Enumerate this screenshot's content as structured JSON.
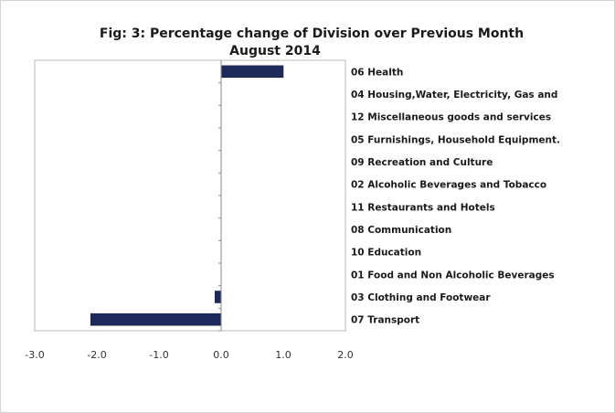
{
  "chart_data": {
    "type": "bar",
    "orientation": "horizontal",
    "title": "Fig: 3: Percentage change of Division over Previous Month",
    "subtitle": "August 2014",
    "categories": [
      "06 Health",
      "04 Housing,Water, Electricity, Gas and",
      "12 Miscellaneous goods and services",
      "05 Furnishings, Household Equipment.",
      "09 Recreation and Culture",
      "02 Alcoholic Beverages and Tobacco",
      "11 Restaurants and Hotels",
      "08 Communication",
      "10 Education",
      "01 Food and Non Alcoholic Beverages",
      "03 Clothing and Footwear",
      "07 Transport"
    ],
    "values": [
      1.0,
      0.0,
      0.0,
      0.0,
      0.0,
      0.0,
      0.0,
      0.0,
      0.0,
      0.0,
      -0.1,
      -2.1
    ],
    "xlim": [
      -3.0,
      2.0
    ],
    "xticks": [
      "-3.0",
      "-2.0",
      "-1.0",
      "0.0",
      "1.0",
      "2.0"
    ],
    "bar_color": "#1f2a5c",
    "grid": false,
    "legend": "none"
  }
}
